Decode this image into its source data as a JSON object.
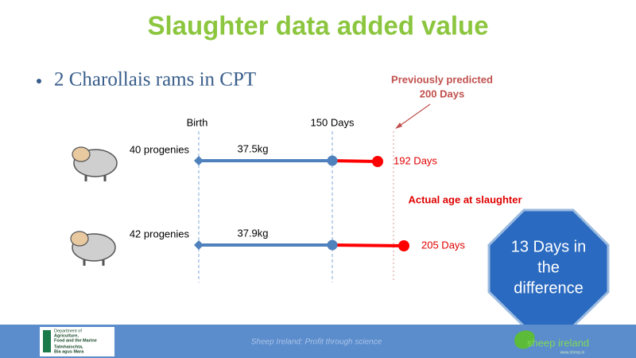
{
  "title": "Slaughter data added value",
  "bullet": "2 Charollais rams in CPT",
  "predicted": [
    "Previously predicted",
    "200 Days"
  ],
  "timeline_labels": {
    "birth": "Birth",
    "day150": "150 Days"
  },
  "rows": [
    {
      "progenies": "40 progenies",
      "weight": "37.5kg",
      "age": "192 Days"
    },
    {
      "progenies": "42 progenies",
      "weight": "37.9kg",
      "age": "205 Days"
    }
  ],
  "actual_label": "Actual age at slaughter",
  "callout": [
    "13 Days in",
    "the",
    "difference"
  ],
  "footer": {
    "tagline": "Sheep Ireland: Profit through science",
    "logo_left": [
      "Department of",
      "Agriculture,",
      "Food and the Marine",
      "Talmhaíochta,",
      "Bia agus Mara"
    ],
    "logo_right": "sheep ireland",
    "url": "www.sheep.ie"
  }
}
